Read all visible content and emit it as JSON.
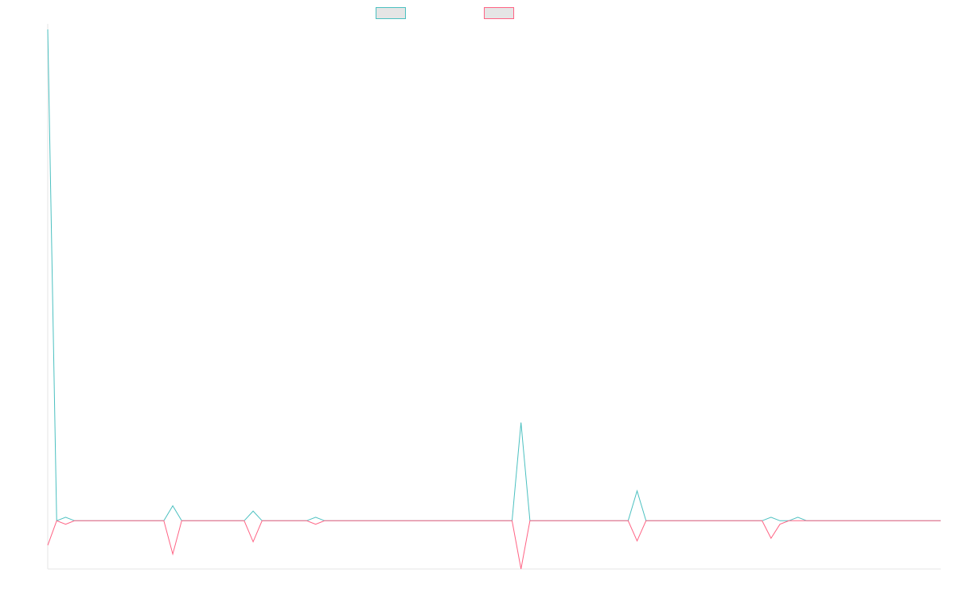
{
  "chart_data": {
    "type": "line",
    "title": "",
    "xlabel": "",
    "ylabel": "",
    "legend_position": "top-center",
    "grid": false,
    "ylim": [
      -55,
      560
    ],
    "x_count": 88,
    "series": [
      {
        "name": "",
        "color": "#4bc0c0",
        "points": [
          [
            0,
            560
          ],
          [
            1,
            0
          ],
          [
            2,
            4
          ],
          [
            3,
            0
          ],
          [
            5,
            0
          ],
          [
            8,
            0
          ],
          [
            10,
            0
          ],
          [
            13,
            0
          ],
          [
            14,
            17
          ],
          [
            15,
            0
          ],
          [
            17,
            0
          ],
          [
            18,
            0
          ],
          [
            19,
            0
          ],
          [
            20,
            0
          ],
          [
            21,
            0
          ],
          [
            22,
            0
          ],
          [
            23,
            11
          ],
          [
            24,
            0
          ],
          [
            25,
            0
          ],
          [
            26,
            0
          ],
          [
            27,
            0
          ],
          [
            28,
            0
          ],
          [
            29,
            0
          ],
          [
            30,
            4
          ],
          [
            31,
            0
          ],
          [
            35,
            0
          ],
          [
            36,
            0
          ],
          [
            37,
            0
          ],
          [
            38,
            0
          ],
          [
            39,
            0
          ],
          [
            40,
            0
          ],
          [
            41,
            0
          ],
          [
            42,
            0
          ],
          [
            43,
            0
          ],
          [
            44,
            0
          ],
          [
            45,
            0
          ],
          [
            46,
            0
          ],
          [
            47,
            0
          ],
          [
            48,
            0
          ],
          [
            49,
            0
          ],
          [
            50,
            0
          ],
          [
            52,
            0
          ],
          [
            53,
            112
          ],
          [
            54,
            0
          ],
          [
            58,
            0
          ],
          [
            64,
            0
          ],
          [
            65,
            0
          ],
          [
            66,
            34
          ],
          [
            67,
            0
          ],
          [
            80,
            0
          ],
          [
            81,
            4
          ],
          [
            82,
            0
          ],
          [
            83,
            0
          ],
          [
            84,
            4
          ],
          [
            85,
            0
          ],
          [
            86,
            0
          ],
          [
            87,
            0
          ],
          [
            88,
            0
          ],
          [
            89,
            0
          ],
          [
            90,
            0
          ],
          [
            91,
            0
          ],
          [
            92,
            0
          ],
          [
            93,
            0
          ],
          [
            94,
            0
          ],
          [
            95,
            0
          ],
          [
            96,
            0
          ],
          [
            97,
            0
          ],
          [
            98,
            0
          ],
          [
            99,
            0
          ],
          [
            100,
            0
          ]
        ]
      },
      {
        "name": "",
        "color": "#ff6384",
        "points": [
          [
            0,
            -28
          ],
          [
            1,
            0
          ],
          [
            2,
            -4
          ],
          [
            3,
            0
          ],
          [
            5,
            0
          ],
          [
            8,
            0
          ],
          [
            10,
            0
          ],
          [
            13,
            0
          ],
          [
            14,
            -38
          ],
          [
            15,
            0
          ],
          [
            17,
            0
          ],
          [
            18,
            0
          ],
          [
            19,
            0
          ],
          [
            20,
            0
          ],
          [
            21,
            0
          ],
          [
            22,
            0
          ],
          [
            23,
            -24
          ],
          [
            24,
            0
          ],
          [
            25,
            0
          ],
          [
            26,
            0
          ],
          [
            27,
            0
          ],
          [
            28,
            0
          ],
          [
            29,
            0
          ],
          [
            30,
            -4
          ],
          [
            31,
            0
          ],
          [
            35,
            0
          ],
          [
            36,
            0
          ],
          [
            37,
            0
          ],
          [
            38,
            0
          ],
          [
            39,
            0
          ],
          [
            40,
            0
          ],
          [
            41,
            0
          ],
          [
            42,
            0
          ],
          [
            43,
            0
          ],
          [
            44,
            0
          ],
          [
            45,
            0
          ],
          [
            46,
            0
          ],
          [
            47,
            0
          ],
          [
            48,
            0
          ],
          [
            49,
            0
          ],
          [
            50,
            0
          ],
          [
            52,
            0
          ],
          [
            53,
            -55
          ],
          [
            54,
            0
          ],
          [
            58,
            0
          ],
          [
            64,
            0
          ],
          [
            65,
            0
          ],
          [
            66,
            -23
          ],
          [
            67,
            0
          ],
          [
            80,
            0
          ],
          [
            81,
            -20
          ],
          [
            82,
            -4
          ],
          [
            83,
            0
          ],
          [
            84,
            0
          ],
          [
            85,
            0
          ],
          [
            86,
            0
          ],
          [
            87,
            0
          ],
          [
            88,
            0
          ],
          [
            89,
            0
          ],
          [
            90,
            0
          ],
          [
            91,
            0
          ],
          [
            92,
            0
          ],
          [
            93,
            0
          ],
          [
            94,
            0
          ],
          [
            95,
            0
          ],
          [
            96,
            0
          ],
          [
            97,
            0
          ],
          [
            98,
            0
          ],
          [
            99,
            0
          ],
          [
            100,
            0
          ]
        ]
      }
    ]
  }
}
